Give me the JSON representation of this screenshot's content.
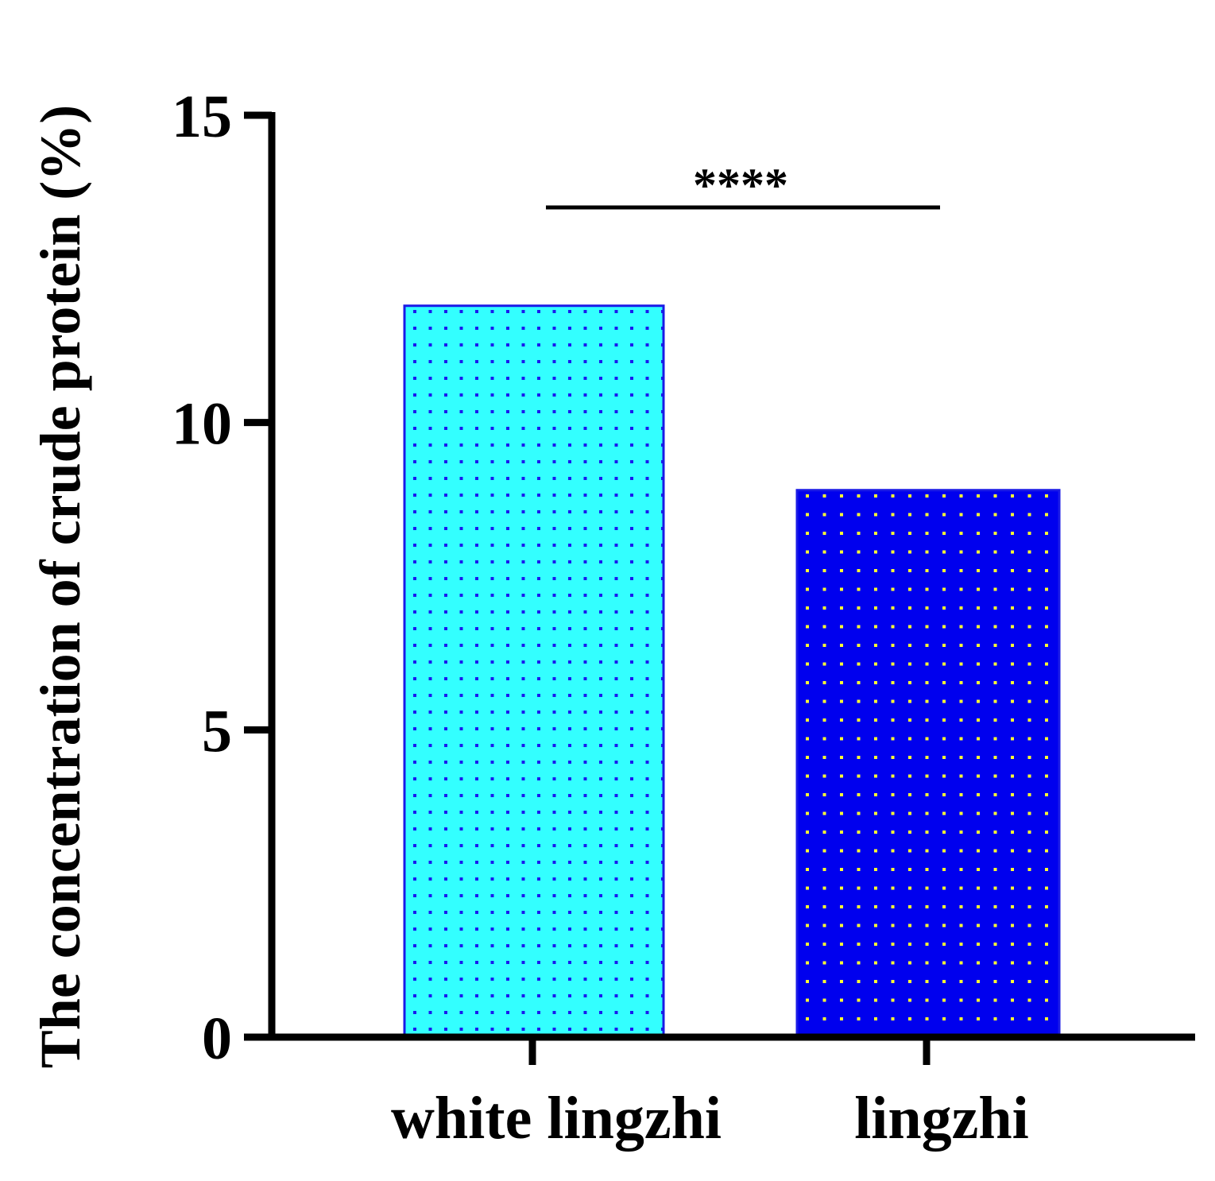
{
  "chart_data": {
    "type": "bar",
    "categories": [
      "white lingzhi",
      "lingzhi"
    ],
    "values": [
      11.9,
      8.9
    ],
    "ylabel": "The concentration of crude protein (%)",
    "xlabel": "",
    "ylim": [
      0,
      15
    ],
    "yticks": [
      "0",
      "5",
      "10",
      "15"
    ],
    "grid": false,
    "colors": {
      "bar_fill": [
        "#33ffff",
        "#0000ee"
      ],
      "bar_dots": [
        "#1a1aee",
        "#ffff33"
      ],
      "bar_stroke": [
        "#1a1ae6",
        "#1a1ae6"
      ],
      "axis": "#000000"
    },
    "annotations": [
      {
        "text": "****",
        "between": [
          "white lingzhi",
          "lingzhi"
        ],
        "y": 13.5
      }
    ]
  }
}
